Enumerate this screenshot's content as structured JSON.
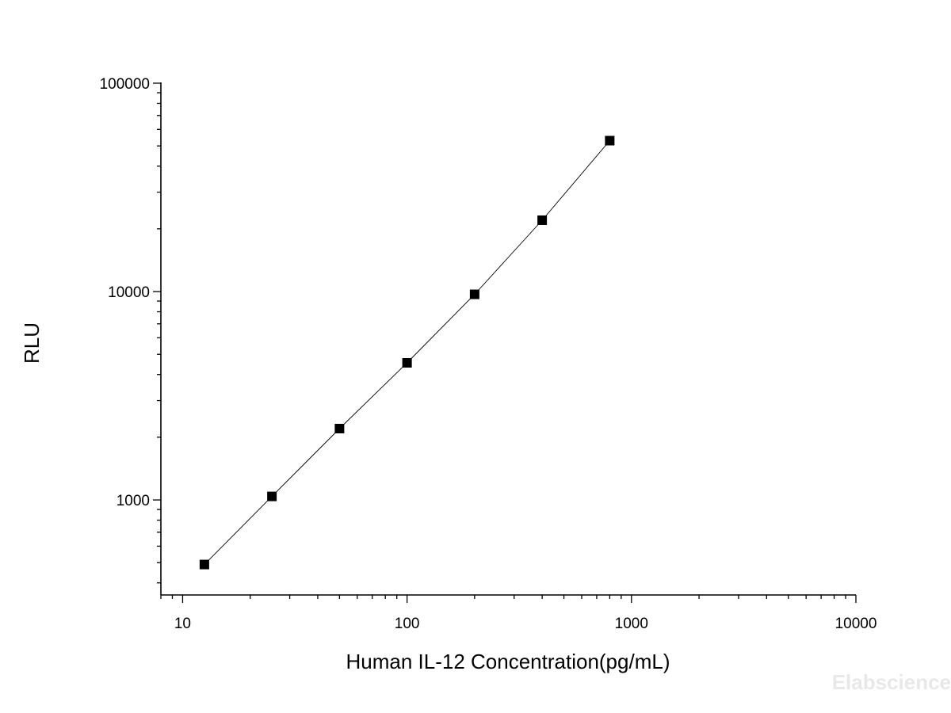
{
  "chart_data": {
    "type": "scatter",
    "x_scale": "log",
    "y_scale": "log",
    "xlim": [
      8,
      10000
    ],
    "ylim": [
      350,
      100000
    ],
    "x_ticks": [
      10,
      100,
      1000,
      10000
    ],
    "x_tick_labels": [
      "10",
      "100",
      "1000",
      "10000"
    ],
    "y_ticks": [
      1000,
      10000,
      100000
    ],
    "y_tick_labels": [
      "1000",
      "10000",
      "100000"
    ],
    "xlabel": "Human IL-12 Concentration(pg/mL)",
    "ylabel": "RLU",
    "grid": false,
    "series": [
      {
        "x": [
          12.5,
          25,
          50,
          100,
          200,
          400,
          800
        ],
        "y": [
          490,
          1040,
          2200,
          4550,
          9700,
          22000,
          53000
        ],
        "marker": "square",
        "line": "connected",
        "color": "#000000"
      }
    ]
  },
  "watermark": "Elabscience"
}
